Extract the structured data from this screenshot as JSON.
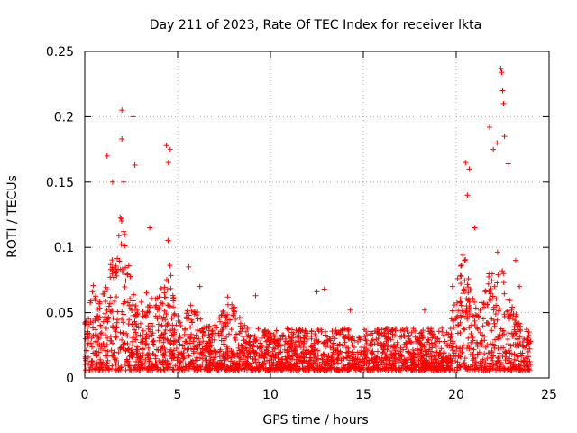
{
  "chart_data": {
    "type": "scatter",
    "title": "Day 211 of 2023, Rate Of TEC Index for receiver lkta",
    "xlabel": "GPS time / hours",
    "ylabel": "ROTI / TECUs",
    "xlim": [
      0,
      25
    ],
    "ylim": [
      0,
      0.25
    ],
    "xticks": [
      0,
      5,
      10,
      15,
      20,
      25
    ],
    "yticks": [
      0,
      0.05,
      0.1,
      0.15,
      0.2,
      0.25
    ],
    "xtick_labels": [
      "0",
      "5",
      "10",
      "15",
      "20",
      "25"
    ],
    "ytick_labels": [
      "0",
      "0.05",
      "0.1",
      "0.15",
      "0.2",
      "0.25"
    ],
    "grid": true,
    "marker": "+",
    "marker_color": "#ff0000",
    "series": [
      {
        "name": "ROTI",
        "peaks": [
          {
            "x": 1.2,
            "y": 0.17
          },
          {
            "x": 1.5,
            "y": 0.15
          },
          {
            "x": 2.0,
            "y": 0.205
          },
          {
            "x": 2.0,
            "y": 0.183
          },
          {
            "x": 2.1,
            "y": 0.15
          },
          {
            "x": 2.6,
            "y": 0.2
          },
          {
            "x": 2.7,
            "y": 0.163
          },
          {
            "x": 3.5,
            "y": 0.115
          },
          {
            "x": 4.4,
            "y": 0.178
          },
          {
            "x": 4.5,
            "y": 0.165
          },
          {
            "x": 4.6,
            "y": 0.175
          },
          {
            "x": 5.6,
            "y": 0.085
          },
          {
            "x": 6.2,
            "y": 0.07
          },
          {
            "x": 7.7,
            "y": 0.062
          },
          {
            "x": 9.2,
            "y": 0.063
          },
          {
            "x": 12.5,
            "y": 0.066
          },
          {
            "x": 12.9,
            "y": 0.068
          },
          {
            "x": 14.3,
            "y": 0.052
          },
          {
            "x": 18.3,
            "y": 0.052
          },
          {
            "x": 19.8,
            "y": 0.07
          },
          {
            "x": 20.5,
            "y": 0.165
          },
          {
            "x": 20.6,
            "y": 0.14
          },
          {
            "x": 20.7,
            "y": 0.16
          },
          {
            "x": 21.0,
            "y": 0.115
          },
          {
            "x": 21.8,
            "y": 0.192
          },
          {
            "x": 22.0,
            "y": 0.175
          },
          {
            "x": 22.2,
            "y": 0.18
          },
          {
            "x": 22.4,
            "y": 0.237
          },
          {
            "x": 22.45,
            "y": 0.234
          },
          {
            "x": 22.5,
            "y": 0.22
          },
          {
            "x": 22.55,
            "y": 0.21
          },
          {
            "x": 22.6,
            "y": 0.185
          },
          {
            "x": 22.8,
            "y": 0.164
          },
          {
            "x": 23.2,
            "y": 0.09
          },
          {
            "x": 23.4,
            "y": 0.07
          }
        ]
      }
    ]
  }
}
